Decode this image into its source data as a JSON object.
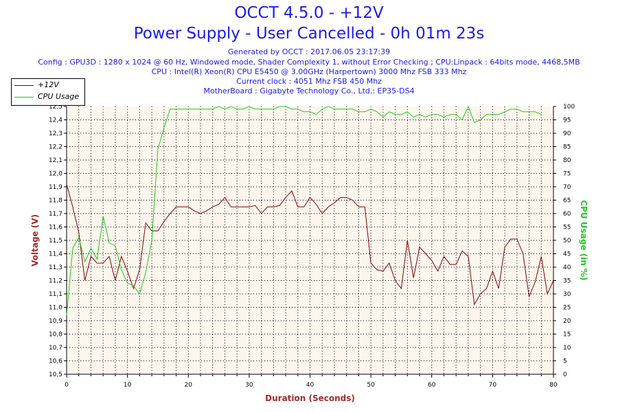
{
  "header": {
    "title": "OCCT 4.5.0 - +12V",
    "subtitle": "Power Supply - User Cancelled - 0h 01m 23s",
    "info": [
      "Generated by OCCT : 2017.06.05 23:17:39",
      "Config : GPU3D : 1280 x 1024 @ 60 Hz, Windowed mode, Shader Complexity 1, without Error Checking ; CPU:Linpack : 64bits mode, 4468,5MB",
      "CPU : Intel(R) Xeon(R) CPU E5450 @ 3.00GHz (Harpertown) 3000 Mhz FSB 333 Mhz",
      "Current clock : 4051 Mhz FSB 450 Mhz",
      "MotherBoard : Gigabyte Technology Co., Ltd.: EP35-DS4"
    ]
  },
  "colors": {
    "voltage": "#800000",
    "cpu": "#1ec81e",
    "plot_bg": "#fdf6ec",
    "title": "#1a1aee",
    "axis_title_left": "#a52a2a",
    "axis_title_right": "#1ec81e"
  },
  "chart_data": {
    "type": "line",
    "xlabel": "Duration (Seconds)",
    "ylabel": "Voltage (V)",
    "y2label": "CPU Usage (in %)",
    "xlim": [
      0,
      80
    ],
    "ylim": [
      10.5,
      12.5
    ],
    "y2lim": [
      0,
      100
    ],
    "x_ticks": [
      0,
      10,
      20,
      30,
      40,
      50,
      60,
      70,
      80
    ],
    "y_ticks": [
      "10,5",
      "10,6",
      "10,7",
      "10,8",
      "10,9",
      "11,0",
      "11,1",
      "11,2",
      "11,3",
      "11,4",
      "11,5",
      "11,6",
      "11,7",
      "11,8",
      "11,9",
      "12,0",
      "12,1",
      "12,2",
      "12,3",
      "12,4",
      "12,5"
    ],
    "y2_ticks": [
      0,
      5,
      10,
      15,
      20,
      25,
      30,
      35,
      40,
      45,
      50,
      55,
      60,
      65,
      70,
      75,
      80,
      85,
      90,
      95,
      100
    ],
    "grid": true,
    "legend_position": "top-left",
    "series": [
      {
        "name": "+12V",
        "axis": "left",
        "x": [
          0,
          1,
          2,
          3,
          4,
          5,
          6,
          7,
          8,
          9,
          10,
          11,
          12,
          13,
          14,
          15,
          16,
          17,
          18,
          19,
          20,
          21,
          22,
          23,
          24,
          25,
          26,
          27,
          28,
          29,
          30,
          31,
          32,
          33,
          34,
          35,
          36,
          37,
          38,
          39,
          40,
          41,
          42,
          43,
          44,
          45,
          46,
          47,
          48,
          49,
          50,
          51,
          52,
          53,
          54,
          55,
          56,
          57,
          58,
          59,
          60,
          61,
          62,
          63,
          64,
          65,
          66,
          67,
          68,
          69,
          70,
          71,
          72,
          73,
          74,
          75,
          76,
          77,
          78,
          79,
          80
        ],
        "values": [
          11.92,
          11.75,
          11.56,
          11.2,
          11.38,
          11.33,
          11.33,
          11.38,
          11.2,
          11.38,
          11.27,
          11.14,
          11.28,
          11.63,
          11.57,
          11.57,
          11.64,
          11.7,
          11.75,
          11.75,
          11.75,
          11.72,
          11.7,
          11.72,
          11.75,
          11.77,
          11.82,
          11.75,
          11.75,
          11.75,
          11.75,
          11.76,
          11.7,
          11.75,
          11.75,
          11.76,
          11.82,
          11.87,
          11.75,
          11.75,
          11.82,
          11.77,
          11.7,
          11.75,
          11.78,
          11.82,
          11.82,
          11.8,
          11.75,
          11.75,
          11.33,
          11.28,
          11.27,
          11.33,
          11.2,
          11.14,
          11.5,
          11.22,
          11.45,
          11.4,
          11.35,
          11.27,
          11.38,
          11.32,
          11.32,
          11.42,
          11.38,
          11.02,
          11.1,
          11.14,
          11.27,
          11.14,
          11.45,
          11.51,
          11.51,
          11.4,
          11.08,
          11.19,
          11.38,
          11.1,
          11.2
        ]
      },
      {
        "name": "CPU Usage",
        "axis": "right",
        "x": [
          0,
          1,
          2,
          3,
          4,
          5,
          6,
          7,
          8,
          9,
          10,
          11,
          12,
          13,
          14,
          15,
          16,
          17,
          18,
          19,
          20,
          21,
          22,
          23,
          24,
          25,
          26,
          27,
          28,
          29,
          30,
          31,
          32,
          33,
          34,
          35,
          36,
          37,
          38,
          39,
          40,
          41,
          42,
          43,
          44,
          45,
          46,
          47,
          48,
          49,
          50,
          51,
          52,
          53,
          54,
          55,
          56,
          57,
          58,
          59,
          60,
          61,
          62,
          63,
          64,
          65,
          66,
          67,
          68,
          69,
          70,
          71,
          72,
          73,
          74,
          75,
          76,
          77,
          78
        ],
        "values": [
          22,
          47,
          51,
          42,
          47,
          43,
          59,
          49,
          48,
          39,
          34,
          33,
          30,
          38,
          50,
          84,
          92,
          99,
          99,
          99,
          99,
          99,
          99,
          99,
          99,
          100,
          99,
          100,
          99,
          99,
          100,
          99,
          99,
          99,
          99,
          100,
          100,
          99,
          99,
          98,
          98,
          97,
          99,
          100,
          99,
          99,
          99,
          99,
          98,
          98,
          99,
          98,
          96,
          98,
          97,
          97,
          98,
          96,
          97,
          96,
          97,
          97,
          96,
          97,
          97,
          95,
          100,
          94,
          95,
          97,
          97,
          97,
          98,
          99,
          99,
          98,
          98,
          98,
          97
        ]
      }
    ]
  }
}
